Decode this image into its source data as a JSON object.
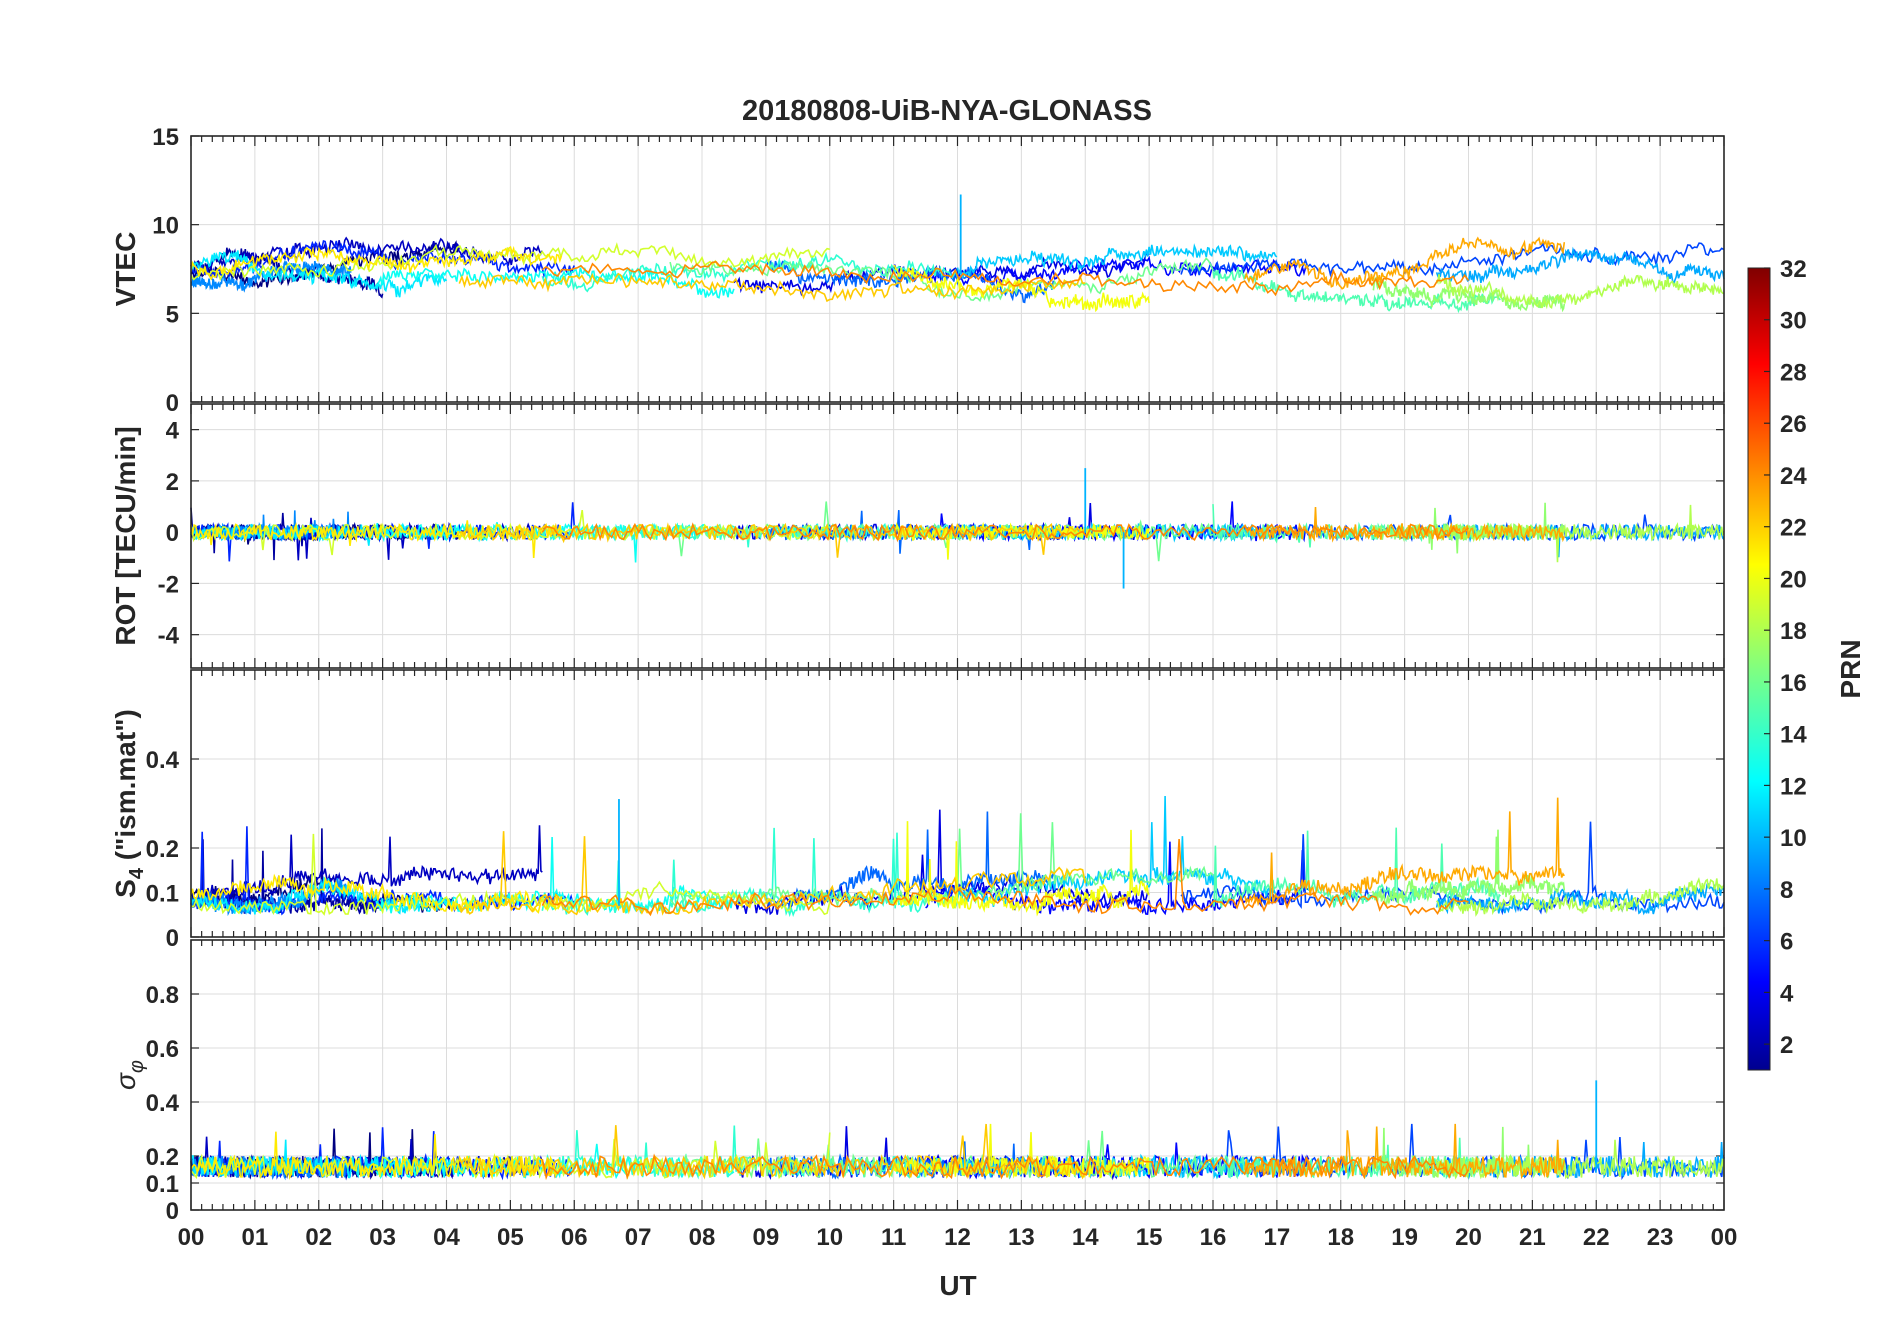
{
  "chart_data": {
    "type": "line",
    "title": "20180808-UiB-NYA-GLONASS",
    "xlabel": "UT",
    "x_ticks": [
      "00",
      "01",
      "02",
      "03",
      "04",
      "05",
      "06",
      "07",
      "08",
      "09",
      "10",
      "11",
      "12",
      "13",
      "14",
      "15",
      "16",
      "17",
      "18",
      "19",
      "20",
      "21",
      "22",
      "23",
      "00"
    ],
    "xlim": [
      0,
      24
    ],
    "panels": [
      {
        "id": "vtec",
        "ylabel": "VTEC",
        "ylim": [
          0,
          15
        ],
        "yticks": [
          0,
          5,
          10,
          15
        ],
        "baseline": 7.2,
        "amp": 1.2
      },
      {
        "id": "rot",
        "ylabel": "ROT [TECU/min]",
        "ylim": [
          -5.3,
          5
        ],
        "yticks": [
          -4,
          -2,
          0,
          2,
          4
        ],
        "baseline": 0,
        "amp": 0.3
      },
      {
        "id": "s4",
        "ylabel": "S",
        "ylabel_sub": "4",
        "ylabel_suffix": " (\"ism.mat\")",
        "ylim": [
          0,
          0.6
        ],
        "yticks": [
          0,
          0.1,
          0.2,
          0.4
        ],
        "baseline": 0.07,
        "amp": 0.03
      },
      {
        "id": "sigma",
        "ylabel": "σ",
        "ylabel_sub": "φ",
        "ylim": [
          0,
          1
        ],
        "yticks": [
          0,
          0.1,
          0.2,
          0.4,
          0.6,
          0.8
        ],
        "baseline": 0.16,
        "amp": 0.04
      }
    ],
    "colorbar": {
      "label": "PRN",
      "range": [
        1,
        32
      ],
      "ticks": [
        2,
        4,
        6,
        8,
        10,
        12,
        14,
        16,
        18,
        20,
        22,
        24,
        26,
        28,
        30,
        32
      ],
      "colormap": "jet"
    },
    "series_prns": [
      1,
      2,
      3,
      4,
      5,
      6,
      7,
      8,
      9,
      10,
      11,
      12,
      13,
      14,
      15,
      16,
      17,
      18,
      19,
      20,
      21,
      22,
      23,
      24
    ],
    "series_visible_hours": [
      [
        0,
        4.2
      ],
      [
        0,
        3
      ],
      [
        0.2,
        5.5
      ],
      [
        8.5,
        15
      ],
      [
        11.5,
        17.5
      ],
      [
        0,
        6
      ],
      [
        15.5,
        24
      ],
      [
        9,
        13.5
      ],
      [
        0,
        2.5
      ],
      [
        19.5,
        24
      ],
      [
        12,
        17
      ],
      [
        0,
        4
      ],
      [
        2.9,
        8.5
      ],
      [
        5.5,
        12
      ],
      [
        16,
        20.5
      ],
      [
        7.5,
        16
      ],
      [
        18.5,
        21.5
      ],
      [
        19.5,
        24
      ],
      [
        0,
        10
      ],
      [
        11,
        15
      ],
      [
        0,
        5.8
      ],
      [
        4.2,
        14
      ],
      [
        16.5,
        21.5
      ],
      [
        5.5,
        20
      ]
    ],
    "annotations": [
      {
        "panel": "vtec",
        "x_hour": 12.05,
        "value": 11.7
      },
      {
        "panel": "rot",
        "x_hour": 14.0,
        "value": 2.5
      },
      {
        "panel": "rot",
        "x_hour": 14.6,
        "value": -2.2
      },
      {
        "panel": "s4",
        "x_hour": 6.7,
        "value": 0.31
      },
      {
        "panel": "sigma",
        "x_hour": 22.0,
        "value": 0.48
      }
    ]
  }
}
